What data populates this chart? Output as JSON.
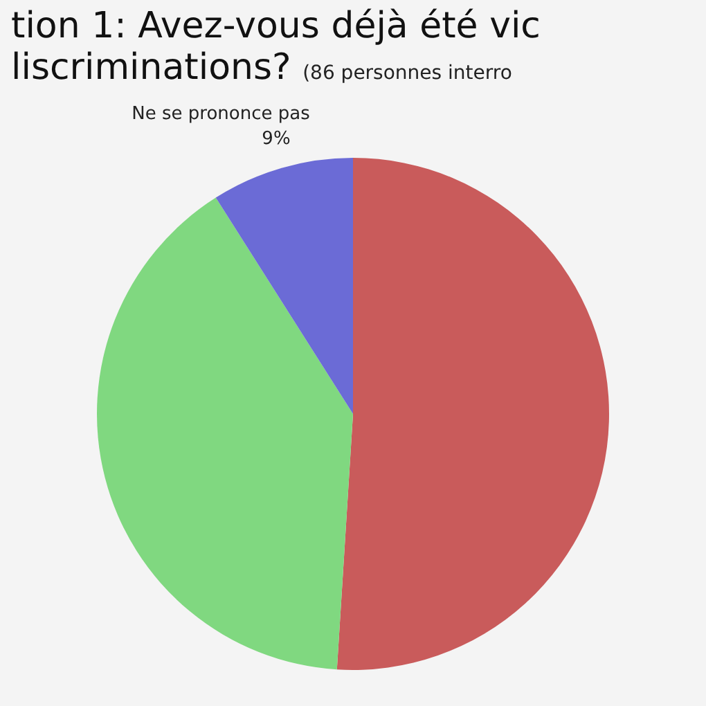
{
  "chart_data": {
    "type": "pie",
    "title": "tion 1: Avez-vous déjà été vic",
    "subtitle": "liscriminations?",
    "annotations": [
      "(86 personnes interro"
    ],
    "categories": [
      null,
      null,
      "Ne se prononce pas"
    ],
    "values": [
      51,
      40,
      9
    ],
    "colors": [
      "#c95b5b",
      "#80d880",
      "#6b6bd6"
    ],
    "value_labels": [
      null,
      null,
      "9%"
    ],
    "legend": false
  }
}
